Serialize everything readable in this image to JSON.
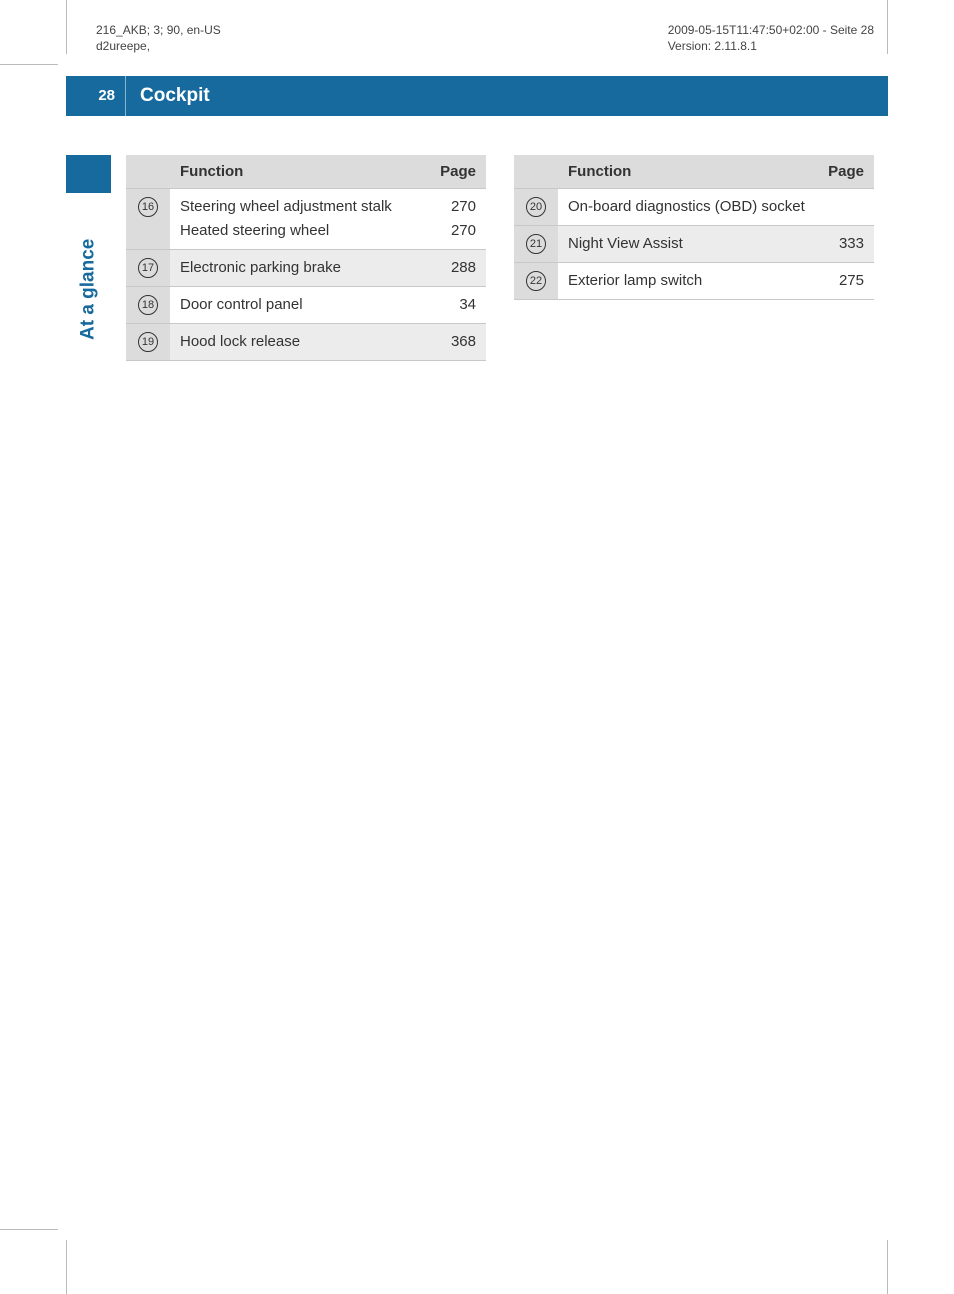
{
  "meta": {
    "left_line1": "216_AKB; 3; 90, en-US",
    "left_line2": "d2ureepe,",
    "right_line1": "2009-05-15T11:47:50+02:00 - Seite 28",
    "right_line2": "Version: 2.11.8.1"
  },
  "titlebar": {
    "page_number": "28",
    "title": "Cockpit"
  },
  "side_tab": "At a glance",
  "colors": {
    "brand": "#176a9e",
    "header_row": "#dcdcdc",
    "stripe": "#ececec",
    "rule": "#c8c8c8",
    "text": "#333333",
    "bg": "#ffffff"
  },
  "typography": {
    "body_fontsize": 15,
    "title_fontsize": 19,
    "meta_fontsize": 12,
    "circled_fontsize": 11
  },
  "tables": {
    "columns": [
      "",
      "Function",
      "Page"
    ],
    "left": {
      "rows": [
        {
          "num": "16",
          "stripe": false,
          "lines": [
            {
              "label": "Steering wheel adjustment stalk",
              "page": "270"
            },
            {
              "label": "Heated steering wheel",
              "page": "270"
            }
          ]
        },
        {
          "num": "17",
          "stripe": true,
          "lines": [
            {
              "label": "Electronic parking brake",
              "page": "288"
            }
          ]
        },
        {
          "num": "18",
          "stripe": false,
          "lines": [
            {
              "label": "Door control panel",
              "page": "34"
            }
          ]
        },
        {
          "num": "19",
          "stripe": true,
          "lines": [
            {
              "label": "Hood lock release",
              "page": "368"
            }
          ]
        }
      ]
    },
    "right": {
      "rows": [
        {
          "num": "20",
          "stripe": false,
          "lines": [
            {
              "label": "On-board diagnostics (OBD) socket",
              "page": ""
            }
          ]
        },
        {
          "num": "21",
          "stripe": true,
          "lines": [
            {
              "label": "Night View Assist",
              "page": "333"
            }
          ]
        },
        {
          "num": "22",
          "stripe": false,
          "lines": [
            {
              "label": "Exterior lamp switch",
              "page": "275"
            }
          ]
        }
      ]
    }
  }
}
